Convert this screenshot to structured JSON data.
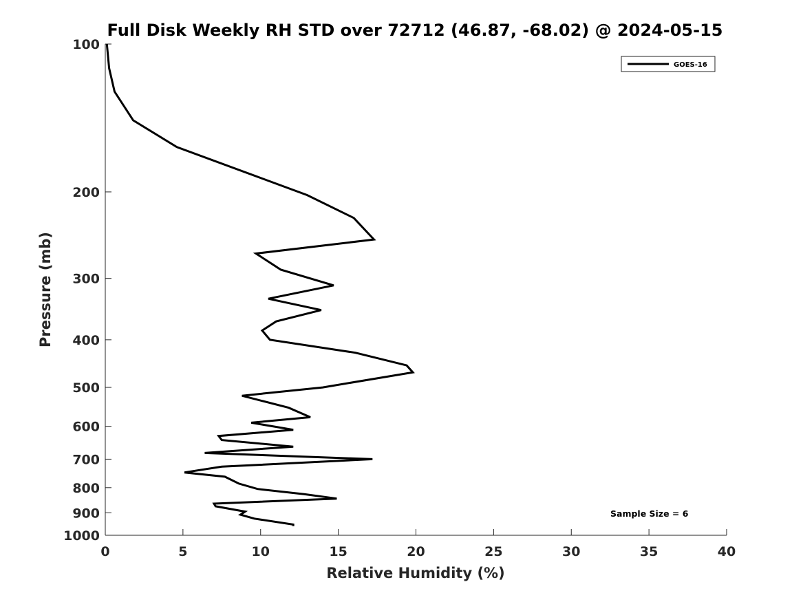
{
  "chart_data": {
    "type": "line",
    "title": "Full Disk Weekly RH STD over 72712 (46.87, -68.02) @ 2024-05-15",
    "xlabel": "Relative Humidity (%)",
    "ylabel": "Pressure (mb)",
    "xlim": [
      0,
      40
    ],
    "ylim": [
      100,
      1000
    ],
    "y_scale": "log",
    "y_reversed": true,
    "x_ticks": [
      0,
      5,
      10,
      15,
      20,
      25,
      30,
      35,
      40
    ],
    "x_tick_labels": [
      "0",
      "5",
      "10",
      "15",
      "20",
      "25",
      "30",
      "35",
      "40"
    ],
    "y_ticks": [
      100,
      200,
      300,
      400,
      500,
      600,
      700,
      800,
      900,
      1000
    ],
    "y_tick_labels": [
      "100",
      "200",
      "300",
      "400",
      "500",
      "600",
      "700",
      "800",
      "900",
      "1000"
    ],
    "grid": false,
    "legend_position": "top-right",
    "annotation": "Sample Size = 6",
    "series": [
      {
        "name": "GOES-16",
        "color": "#000000",
        "x": [
          0.1,
          0.25,
          0.6,
          1.8,
          4.6,
          13.0,
          16.0,
          17.3,
          9.7,
          11.3,
          14.7,
          10.5,
          13.9,
          11.0,
          10.1,
          10.6,
          16.1,
          19.4,
          19.8,
          14.0,
          8.8,
          11.8,
          13.2,
          9.4,
          12.1,
          7.3,
          7.5,
          12.1,
          6.4,
          17.2,
          7.5,
          5.1,
          7.7,
          8.6,
          9.8,
          12.8,
          14.9,
          7.0,
          7.1,
          9.0,
          8.7,
          9.6,
          12.1,
          12.1
        ],
        "y": [
          100,
          112,
          125,
          143,
          162,
          203,
          226,
          250,
          267,
          288,
          310,
          330,
          348,
          367,
          383,
          400,
          425,
          451,
          466,
          500,
          520,
          550,
          575,
          590,
          610,
          628,
          640,
          660,
          680,
          700,
          725,
          745,
          760,
          785,
          805,
          825,
          842,
          862,
          873,
          895,
          908,
          925,
          951,
          958
        ]
      }
    ]
  }
}
